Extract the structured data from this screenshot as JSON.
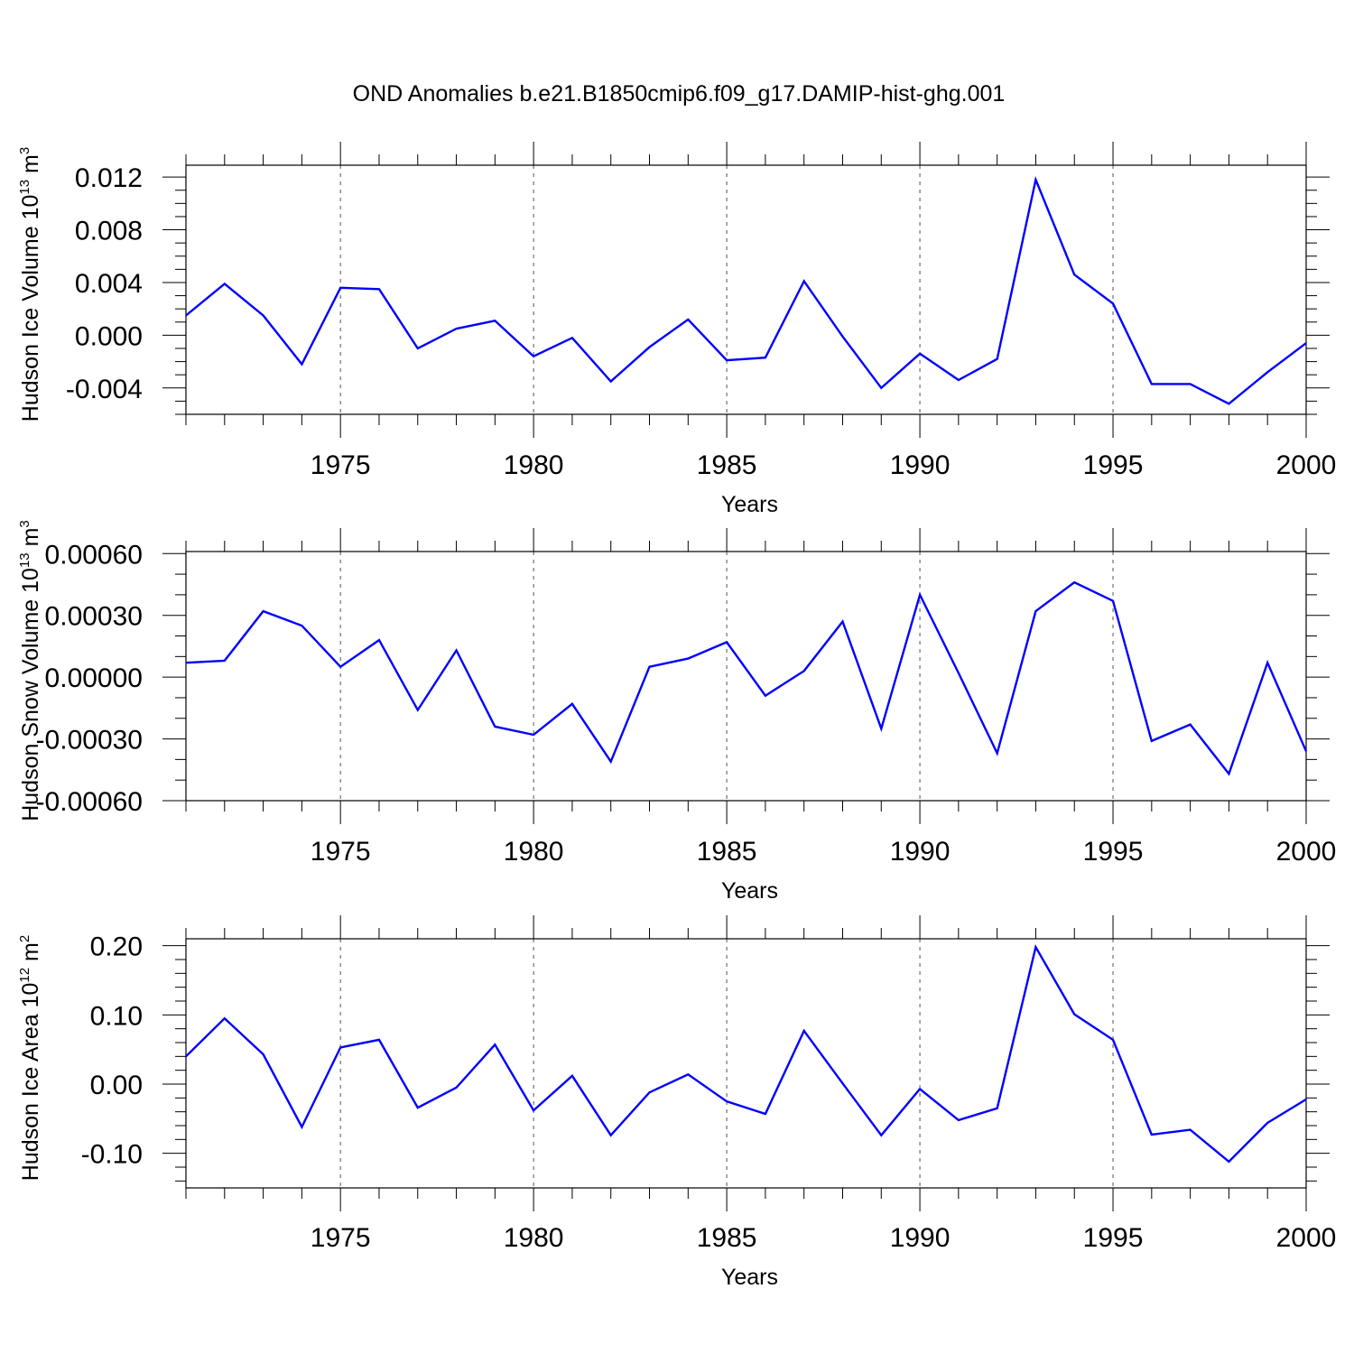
{
  "title": "OND Anomalies b.e21.B1850cmip6.f09_g17.DAMIP-hist-ghg.001",
  "chart_data": [
    {
      "type": "line",
      "ylabel": "Hudson Ice Volume 10",
      "ylabel_sup": "13",
      "ylabel_unit": " m",
      "ylabel_unit_sup": "3",
      "xlabel": "Years",
      "xlim": [
        1971,
        2000
      ],
      "ylim": [
        -0.006,
        0.0129
      ],
      "yticks": [
        -0.004,
        0.0,
        0.004,
        0.008,
        0.012
      ],
      "ytick_labels": [
        "-0.004",
        "0.000",
        "0.004",
        "0.008",
        "0.012"
      ],
      "yminor_step": 0.001,
      "xticks": [
        1975,
        1980,
        1985,
        1990,
        1995,
        2000
      ],
      "xtick_labels": [
        "1975",
        "1980",
        "1985",
        "1990",
        "1995",
        "2000"
      ],
      "color": "#0000ff",
      "x": [
        1971,
        1972,
        1973,
        1974,
        1975,
        1976,
        1977,
        1978,
        1979,
        1980,
        1981,
        1982,
        1983,
        1984,
        1985,
        1986,
        1987,
        1988,
        1989,
        1990,
        1991,
        1992,
        1993,
        1994,
        1995,
        1996,
        1997,
        1998,
        1999,
        2000
      ],
      "values": [
        0.0015,
        0.0039,
        0.0015,
        -0.0022,
        0.0036,
        0.0035,
        -0.001,
        0.0005,
        0.0011,
        -0.0016,
        -0.0002,
        -0.0035,
        -0.0009,
        0.0012,
        -0.0019,
        -0.0017,
        0.0041,
        -0.0001,
        -0.004,
        -0.0014,
        -0.0034,
        -0.0018,
        0.0118,
        0.0046,
        0.0024,
        -0.0037,
        -0.0037,
        -0.0052,
        -0.0028,
        -0.0006
      ]
    },
    {
      "type": "line",
      "ylabel": "Hudson Snow Volume 10",
      "ylabel_sup": "13",
      "ylabel_unit": " m",
      "ylabel_unit_sup": "3",
      "xlabel": "Years",
      "xlim": [
        1971,
        2000
      ],
      "ylim": [
        -0.0006,
        0.00061
      ],
      "yticks": [
        -0.0006,
        -0.0003,
        0.0,
        0.0003,
        0.0006
      ],
      "ytick_labels": [
        "-0.00060",
        "-0.00030",
        "0.00000",
        "0.00030",
        "0.00060"
      ],
      "yminor_step": 0.0001,
      "xticks": [
        1975,
        1980,
        1985,
        1990,
        1995,
        2000
      ],
      "xtick_labels": [
        "1975",
        "1980",
        "1985",
        "1990",
        "1995",
        "2000"
      ],
      "color": "#0000ff",
      "x": [
        1971,
        1972,
        1973,
        1974,
        1975,
        1976,
        1977,
        1978,
        1979,
        1980,
        1981,
        1982,
        1983,
        1984,
        1985,
        1986,
        1987,
        1988,
        1989,
        1990,
        1991,
        1992,
        1993,
        1994,
        1995,
        1996,
        1997,
        1998,
        1999,
        2000
      ],
      "values": [
        7e-05,
        8e-05,
        0.00032,
        0.00025,
        5e-05,
        0.00018,
        -0.00016,
        0.00013,
        -0.00024,
        -0.00028,
        -0.00013,
        -0.00041,
        5e-05,
        9e-05,
        0.00017,
        -9e-05,
        3e-05,
        0.00027,
        -0.00025,
        0.0004,
        2e-05,
        -0.00037,
        0.00032,
        0.00046,
        0.00037,
        -0.00031,
        -0.00023,
        -0.00047,
        7e-05,
        -0.00036
      ]
    },
    {
      "type": "line",
      "ylabel": "Hudson Ice Area 10",
      "ylabel_sup": "12",
      "ylabel_unit": " m",
      "ylabel_unit_sup": "2",
      "xlabel": "Years",
      "xlim": [
        1971,
        2000
      ],
      "ylim": [
        -0.15,
        0.21
      ],
      "yticks": [
        -0.1,
        0.0,
        0.1,
        0.2
      ],
      "ytick_labels": [
        "-0.10",
        "0.00",
        "0.10",
        "0.20"
      ],
      "yminor_step": 0.02,
      "xticks": [
        1975,
        1980,
        1985,
        1990,
        1995,
        2000
      ],
      "xtick_labels": [
        "1975",
        "1980",
        "1985",
        "1990",
        "1995",
        "2000"
      ],
      "color": "#0000ff",
      "x": [
        1971,
        1972,
        1973,
        1974,
        1975,
        1976,
        1977,
        1978,
        1979,
        1980,
        1981,
        1982,
        1983,
        1984,
        1985,
        1986,
        1987,
        1988,
        1989,
        1990,
        1991,
        1992,
        1993,
        1994,
        1995,
        1996,
        1997,
        1998,
        1999,
        2000
      ],
      "values": [
        0.04,
        0.095,
        0.043,
        -0.062,
        0.053,
        0.064,
        -0.034,
        -0.005,
        0.057,
        -0.038,
        0.012,
        -0.074,
        -0.012,
        0.014,
        -0.025,
        -0.043,
        0.077,
        0.001,
        -0.074,
        -0.007,
        -0.052,
        -0.035,
        0.198,
        0.101,
        0.064,
        -0.073,
        -0.066,
        -0.112,
        -0.056,
        -0.022
      ]
    }
  ]
}
